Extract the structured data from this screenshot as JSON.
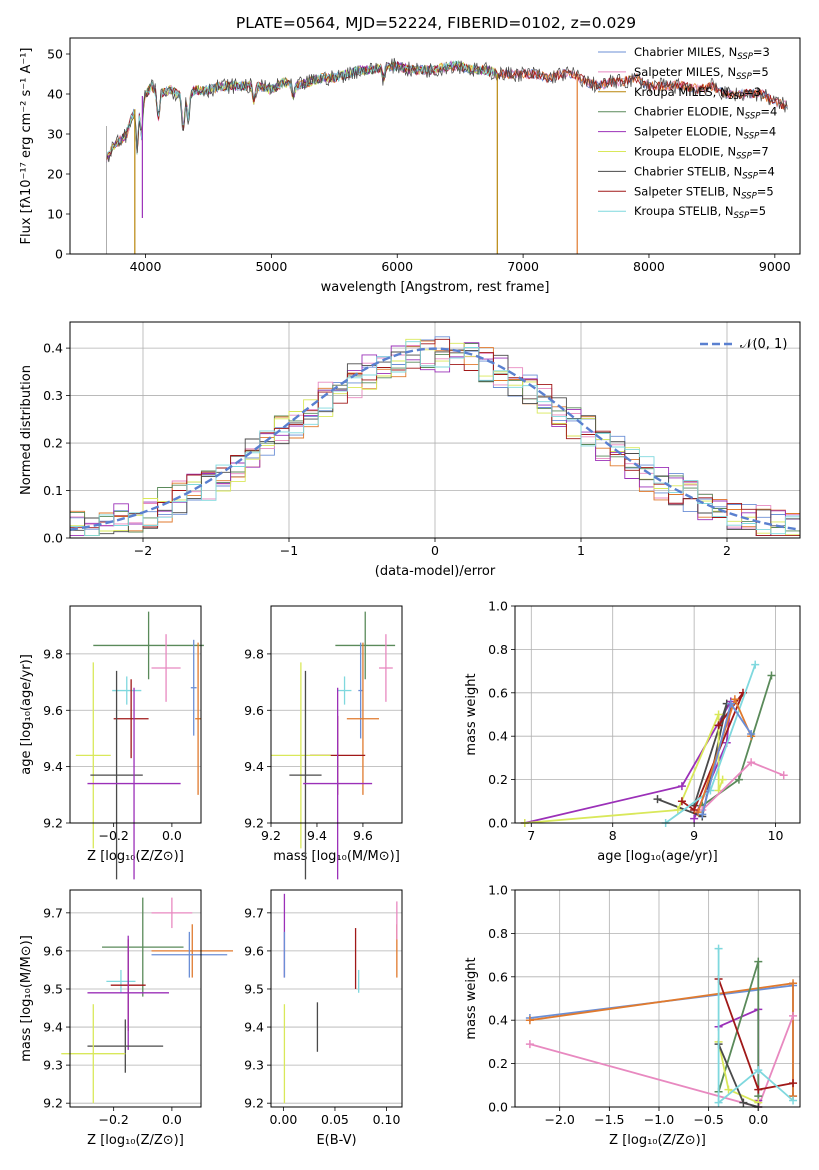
{
  "title": "PLATE=0564, MJD=52224, FIBERID=0102, z=0.029",
  "colors": {
    "Chabrier MILES": "#6b8fd6",
    "Salpeter MILES": "#e889c0",
    "Kroupa MILES": "#b8860b",
    "Chabrier ELODIE": "#5a8a5a",
    "Salpeter ELODIE": "#9b30b8",
    "Kroupa ELODIE": "#d9e85a",
    "Chabrier STELIB": "#4a4a4a",
    "Salpeter STELIB": "#a01818",
    "Kroupa STELIB": "#7fd8de",
    "orange": "#e07a2e",
    "normal": "#5a80d0"
  },
  "legend": [
    {
      "name": "Chabrier MILES",
      "pre": "Chabrier MILES, N",
      "n": "3"
    },
    {
      "name": "Salpeter MILES",
      "pre": "Salpeter MILES, N",
      "n": "5"
    },
    {
      "name": "Kroupa MILES",
      "pre": "Kroupa MILES, N",
      "n": "3"
    },
    {
      "name": "Chabrier ELODIE",
      "pre": "Chabrier ELODIE, N",
      "n": "4"
    },
    {
      "name": "Salpeter ELODIE",
      "pre": "Salpeter ELODIE, N",
      "n": "4"
    },
    {
      "name": "Kroupa ELODIE",
      "pre": "Kroupa ELODIE, N",
      "n": "7"
    },
    {
      "name": "Chabrier STELIB",
      "pre": "Chabrier STELIB, N",
      "n": "4"
    },
    {
      "name": "Salpeter STELIB",
      "pre": "Salpeter STELIB, N",
      "n": "5"
    },
    {
      "name": "Kroupa STELIB",
      "pre": "Kroupa STELIB, N",
      "n": "5"
    }
  ],
  "legend_sub": "SSP",
  "normal_label": "𝒩(0, 1)",
  "chart_data": [
    {
      "id": "spectrum",
      "type": "line",
      "xlabel": "wavelength [Angstrom, rest frame]",
      "ylabel": "Flux [fλ10⁻¹⁷ erg cm⁻² s⁻¹ A⁻¹]",
      "xlim": [
        3400,
        9200
      ],
      "ylim": [
        0,
        54
      ],
      "xticks": [
        4000,
        5000,
        6000,
        7000,
        8000,
        9000
      ],
      "yticks": [
        0,
        10,
        20,
        30,
        40,
        50
      ],
      "continuum": [
        [
          3690,
          24
        ],
        [
          3750,
          27
        ],
        [
          3850,
          30
        ],
        [
          3900,
          35
        ],
        [
          3950,
          39
        ],
        [
          4000,
          40
        ],
        [
          4050,
          42
        ],
        [
          4100,
          40
        ],
        [
          4200,
          41
        ],
        [
          4300,
          39
        ],
        [
          4400,
          41
        ],
        [
          4500,
          41
        ],
        [
          4600,
          42
        ],
        [
          4700,
          42
        ],
        [
          4800,
          42
        ],
        [
          4900,
          42
        ],
        [
          5000,
          41
        ],
        [
          5100,
          43
        ],
        [
          5200,
          42
        ],
        [
          5300,
          43
        ],
        [
          5400,
          44
        ],
        [
          5500,
          44
        ],
        [
          5600,
          45
        ],
        [
          5700,
          46
        ],
        [
          5800,
          46
        ],
        [
          5900,
          47
        ],
        [
          6000,
          47
        ],
        [
          6100,
          46
        ],
        [
          6200,
          46
        ],
        [
          6300,
          46
        ],
        [
          6400,
          47
        ],
        [
          6500,
          47
        ],
        [
          6600,
          46
        ],
        [
          6700,
          46
        ],
        [
          6800,
          45
        ],
        [
          6900,
          45
        ],
        [
          7000,
          45
        ],
        [
          7100,
          45
        ],
        [
          7200,
          44
        ],
        [
          7300,
          45
        ],
        [
          7400,
          45
        ],
        [
          7500,
          43
        ],
        [
          7600,
          42
        ],
        [
          7700,
          43
        ],
        [
          7800,
          43
        ],
        [
          7900,
          44
        ],
        [
          8000,
          42
        ],
        [
          8100,
          42
        ],
        [
          8200,
          42
        ],
        [
          8300,
          42
        ],
        [
          8400,
          41
        ],
        [
          8500,
          42
        ],
        [
          8600,
          40
        ],
        [
          8700,
          40
        ],
        [
          8800,
          40
        ],
        [
          8900,
          40
        ],
        [
          9000,
          38
        ],
        [
          9100,
          37
        ]
      ],
      "drops": [
        {
          "series": "Kroupa MILES",
          "x": 3915,
          "to": 0
        },
        {
          "series": "Kroupa MILES",
          "x": 6795,
          "to": 0
        },
        {
          "series": "orange",
          "x": 7430,
          "to": 0
        },
        {
          "series": "Salpeter ELODIE",
          "x": 3975,
          "to": 9
        }
      ]
    },
    {
      "id": "residuals",
      "type": "area",
      "xlabel": "(data-model)/error",
      "ylabel": "Normed distribution",
      "xlim": [
        -2.5,
        2.5
      ],
      "ylim": [
        0,
        0.455
      ],
      "xticks": [
        -2,
        -1,
        0,
        1,
        2
      ],
      "xticklabels": [
        "−2",
        "−1",
        "0",
        "1",
        "2"
      ],
      "yticks": [
        0.0,
        0.1,
        0.2,
        0.3,
        0.4
      ],
      "yticklabels": [
        "0.0",
        "0.1",
        "0.2",
        "0.3",
        "0.4"
      ],
      "bin_width": 0.1,
      "normal": {
        "mu": 0,
        "sigma": 1
      }
    },
    {
      "id": "age_vs_Z",
      "type": "scatter",
      "xlabel": "Z [log₁₀(Z/Z⊙)]",
      "ylabel": "age  [log₁₀(age/yr)]",
      "xlim": [
        -0.35,
        0.1
      ],
      "ylim": [
        9.2,
        9.97
      ],
      "xticks": [
        -0.2,
        0.0
      ],
      "xticklabels": [
        "−0.2",
        "0.0"
      ],
      "yticks": [
        9.2,
        9.4,
        9.6,
        9.8
      ],
      "yticklabels": [
        "9.2",
        "9.4",
        "9.6",
        "9.8"
      ],
      "points": [
        {
          "s": "Chabrier ELODIE",
          "x": -0.08,
          "xe": 0.19,
          "y": 9.83,
          "ye": 0.12
        },
        {
          "s": "Salpeter MILES",
          "x": -0.02,
          "xe": 0.05,
          "y": 9.75,
          "ye": 0.12
        },
        {
          "s": "Chabrier MILES",
          "x": 0.075,
          "xe": 0.01,
          "y": 9.68,
          "ye": 0.17
        },
        {
          "s": "Kroupa STELIB",
          "x": -0.155,
          "xe": 0.05,
          "y": 9.67,
          "ye": 0.05
        },
        {
          "s": "orange",
          "x": 0.09,
          "xe": 0.01,
          "y": 9.57,
          "ye": 0.27
        },
        {
          "s": "Salpeter STELIB",
          "x": -0.14,
          "xe": 0.06,
          "y": 9.57,
          "ye": 0.14
        },
        {
          "s": "Kroupa ELODIE",
          "x": -0.27,
          "xe": 0.06,
          "y": 9.44,
          "ye": 0.33
        },
        {
          "s": "Chabrier STELIB",
          "x": -0.19,
          "xe": 0.09,
          "y": 9.37,
          "ye": 0.37
        },
        {
          "s": "Salpeter ELODIE",
          "x": -0.13,
          "xe": 0.16,
          "y": 9.34,
          "ye": 0.34
        }
      ]
    },
    {
      "id": "age_vs_mass",
      "type": "scatter",
      "xlabel": "mass [log₁₀(M/M⊙)]",
      "ylabel": "",
      "xlim": [
        9.2,
        9.77
      ],
      "ylim": [
        9.2,
        9.97
      ],
      "xticks": [
        9.2,
        9.4,
        9.6
      ],
      "xticklabels": [
        "9.2",
        "9.4",
        "9.6"
      ],
      "yticks": [
        9.2,
        9.4,
        9.6,
        9.8
      ],
      "yticklabels": [
        "9.2",
        "9.4",
        "9.6",
        "9.8"
      ],
      "points": [
        {
          "s": "Chabrier ELODIE",
          "x": 9.61,
          "xe": 0.13,
          "y": 9.83,
          "ye": 0.12
        },
        {
          "s": "Salpeter MILES",
          "x": 9.7,
          "xe": 0.03,
          "y": 9.75,
          "ye": 0.12
        },
        {
          "s": "Chabrier MILES",
          "x": 9.59,
          "xe": 0.01,
          "y": 9.67,
          "ye": 0.17
        },
        {
          "s": "Kroupa STELIB",
          "x": 9.52,
          "xe": 0.03,
          "y": 9.67,
          "ye": 0.05
        },
        {
          "s": "orange",
          "x": 9.6,
          "xe": 0.07,
          "y": 9.57,
          "ye": 0.27
        },
        {
          "s": "Salpeter STELIB",
          "x": 9.49,
          "xe": 0.12,
          "y": 9.44,
          "ye": 0.14
        },
        {
          "s": "Kroupa ELODIE",
          "x": 9.33,
          "xe": 0.13,
          "y": 9.44,
          "ye": 0.33
        },
        {
          "s": "Chabrier STELIB",
          "x": 9.35,
          "xe": 0.07,
          "y": 9.37,
          "ye": 0.37
        },
        {
          "s": "Salpeter ELODIE",
          "x": 9.49,
          "xe": 0.15,
          "y": 9.34,
          "ye": 0.34
        }
      ]
    },
    {
      "id": "mass_weight_vs_age",
      "type": "line",
      "xlabel": "age  [log₁₀(age/yr)]",
      "ylabel": "mass weight",
      "xlim": [
        6.8,
        10.3
      ],
      "ylim": [
        0,
        1
      ],
      "xticks": [
        7,
        8,
        9,
        10
      ],
      "xticklabels": [
        "7",
        "8",
        "9",
        "10"
      ],
      "yticks": [
        0,
        0.2,
        0.4,
        0.6,
        0.8,
        1.0
      ],
      "yticklabels": [
        "0.0",
        "0.2",
        "0.4",
        "0.6",
        "0.8",
        "1.0"
      ],
      "lines": [
        {
          "s": "Salpeter ELODIE",
          "pts": [
            [
              6.92,
              0.0
            ],
            [
              8.85,
              0.17
            ],
            [
              9.45,
              0.56
            ],
            [
              9.4,
              0.37
            ],
            [
              9.0,
              0.02
            ]
          ]
        },
        {
          "s": "Chabrier STELIB",
          "pts": [
            [
              8.55,
              0.11
            ],
            [
              9.1,
              0.03
            ],
            [
              9.4,
              0.55
            ],
            [
              9.0,
              0.08
            ]
          ]
        },
        {
          "s": "Kroupa ELODIE",
          "pts": [
            [
              6.92,
              0.0
            ],
            [
              8.8,
              0.06
            ],
            [
              9.3,
              0.5
            ],
            [
              9.3,
              0.15
            ],
            [
              9.35,
              0.2
            ]
          ]
        },
        {
          "s": "Salpeter STELIB",
          "pts": [
            [
              8.85,
              0.1
            ],
            [
              9.0,
              0.06
            ],
            [
              9.6,
              0.6
            ],
            [
              9.3,
              0.45
            ]
          ]
        },
        {
          "s": "Chabrier ELODIE",
          "pts": [
            [
              9.1,
              0.08
            ],
            [
              9.55,
              0.2
            ],
            [
              9.95,
              0.68
            ]
          ]
        },
        {
          "s": "Kroupa STELIB",
          "pts": [
            [
              8.65,
              0.0
            ],
            [
              9.2,
              0.15
            ],
            [
              9.75,
              0.73
            ]
          ]
        },
        {
          "s": "Salpeter MILES",
          "pts": [
            [
              9.1,
              0.06
            ],
            [
              9.7,
              0.28
            ],
            [
              10.1,
              0.22
            ]
          ]
        },
        {
          "s": "orange",
          "pts": [
            [
              9.05,
              0.05
            ],
            [
              9.5,
              0.57
            ],
            [
              9.7,
              0.4
            ]
          ]
        },
        {
          "s": "Chabrier MILES",
          "pts": [
            [
              9.1,
              0.04
            ],
            [
              9.45,
              0.55
            ],
            [
              9.7,
              0.41
            ]
          ]
        }
      ]
    },
    {
      "id": "mass_vs_Z",
      "type": "scatter",
      "xlabel": "Z [log₁₀(Z/Z⊙)]",
      "ylabel": "mass [log₁₀(M/M⊙)]",
      "xlim": [
        -0.35,
        0.1
      ],
      "ylim": [
        9.19,
        9.76
      ],
      "xticks": [
        -0.2,
        0.0
      ],
      "xticklabels": [
        "−0.2",
        "0.0"
      ],
      "yticks": [
        9.2,
        9.3,
        9.4,
        9.5,
        9.6,
        9.7
      ],
      "yticklabels": [
        "9.2",
        "9.3",
        "9.4",
        "9.5",
        "9.6",
        "9.7"
      ],
      "points": [
        {
          "s": "Salpeter MILES",
          "x": 0.0,
          "xe": 0.07,
          "y": 9.7,
          "ye": 0.04
        },
        {
          "s": "Chabrier ELODIE",
          "x": -0.1,
          "xe": 0.14,
          "y": 9.61,
          "ye": 0.13
        },
        {
          "s": "orange",
          "x": 0.07,
          "xe": 0.14,
          "y": 9.6,
          "ye": 0.07
        },
        {
          "s": "Chabrier MILES",
          "x": 0.06,
          "xe": 0.13,
          "y": 9.59,
          "ye": 0.06
        },
        {
          "s": "Kroupa STELIB",
          "x": -0.175,
          "xe": 0.05,
          "y": 9.52,
          "ye": 0.03
        },
        {
          "s": "Salpeter STELIB",
          "x": -0.15,
          "xe": 0.06,
          "y": 9.51,
          "ye": 0.12
        },
        {
          "s": "Salpeter ELODIE",
          "x": -0.15,
          "xe": 0.14,
          "y": 9.49,
          "ye": 0.15
        },
        {
          "s": "Chabrier STELIB",
          "x": -0.16,
          "xe": 0.13,
          "y": 9.35,
          "ye": 0.07
        },
        {
          "s": "Kroupa ELODIE",
          "x": -0.27,
          "xe": 0.11,
          "y": 9.33,
          "ye": 0.13
        }
      ]
    },
    {
      "id": "mass_vs_ebv",
      "type": "scatter",
      "xlabel": "E(B-V)",
      "ylabel": "",
      "xlim": [
        -0.012,
        0.115
      ],
      "ylim": [
        9.19,
        9.76
      ],
      "xticks": [
        0.0,
        0.05,
        0.1
      ],
      "xticklabels": [
        "0.00",
        "0.05",
        "0.10"
      ],
      "yticks": [
        9.2,
        9.3,
        9.4,
        9.5,
        9.6,
        9.7
      ],
      "yticklabels": [
        "9.2",
        "9.3",
        "9.4",
        "9.5",
        "9.6",
        "9.7"
      ],
      "points": [
        {
          "s": "Salpeter ELODIE",
          "x": 0.001,
          "xe": 0,
          "y": 9.64,
          "ye": 0.11
        },
        {
          "s": "Chabrier MILES",
          "x": 0.001,
          "xe": 0,
          "y": 9.59,
          "ye": 0.06
        },
        {
          "s": "Kroupa ELODIE",
          "x": 0.001,
          "xe": 0,
          "y": 9.33,
          "ye": 0.13
        },
        {
          "s": "Chabrier STELIB",
          "x": 0.033,
          "xe": 0,
          "y": 9.4,
          "ye": 0.065
        },
        {
          "s": "Salpeter STELIB",
          "x": 0.07,
          "xe": 0,
          "y": 9.58,
          "ye": 0.08
        },
        {
          "s": "Kroupa STELIB",
          "x": 0.073,
          "xe": 0,
          "y": 9.52,
          "ye": 0.03
        },
        {
          "s": "orange",
          "x": 0.11,
          "xe": 0,
          "y": 9.6,
          "ye": 0.07
        },
        {
          "s": "Salpeter MILES",
          "x": 0.11,
          "xe": 0,
          "y": 9.68,
          "ye": 0.05
        }
      ]
    },
    {
      "id": "mass_weight_vs_Z",
      "type": "line",
      "xlabel": "Z [log₁₀(Z/Z⊙)]",
      "ylabel": "mass weight",
      "xlim": [
        -2.45,
        0.42
      ],
      "ylim": [
        0,
        1
      ],
      "xticks": [
        -2.0,
        -1.5,
        -1.0,
        -0.5,
        0.0
      ],
      "xticklabels": [
        "−2.0",
        "−1.5",
        "−1.0",
        "−0.5",
        "0.0"
      ],
      "yticks": [
        0,
        0.2,
        0.4,
        0.6,
        0.8,
        1.0
      ],
      "yticklabels": [
        "0.0",
        "0.2",
        "0.4",
        "0.6",
        "0.8",
        "1.0"
      ],
      "lines": [
        {
          "s": "Chabrier MILES",
          "pts": [
            [
              -2.3,
              0.41
            ],
            [
              0.35,
              0.56
            ],
            [
              0.35,
              0.05
            ]
          ]
        },
        {
          "s": "orange",
          "pts": [
            [
              -2.3,
              0.4
            ],
            [
              0.35,
              0.57
            ],
            [
              0.35,
              0.05
            ]
          ]
        },
        {
          "s": "Salpeter MILES",
          "pts": [
            [
              -2.3,
              0.29
            ],
            [
              0.0,
              0.0
            ],
            [
              0.35,
              0.42
            ]
          ]
        },
        {
          "s": "Salpeter ELODIE",
          "pts": [
            [
              -0.4,
              0.37
            ],
            [
              0.0,
              0.45
            ],
            [
              0.0,
              0.03
            ]
          ]
        },
        {
          "s": "Chabrier ELODIE",
          "pts": [
            [
              -0.4,
              0.07
            ],
            [
              0.0,
              0.67
            ],
            [
              0.0,
              0.05
            ]
          ]
        },
        {
          "s": "Kroupa ELODIE",
          "pts": [
            [
              -0.4,
              0.3
            ],
            [
              -0.3,
              0.08
            ],
            [
              0.0,
              0.02
            ]
          ]
        },
        {
          "s": "Chabrier STELIB",
          "pts": [
            [
              -0.4,
              0.29
            ],
            [
              -0.15,
              0.02
            ],
            [
              0.0,
              0.0
            ]
          ]
        },
        {
          "s": "Salpeter STELIB",
          "pts": [
            [
              -0.4,
              0.59
            ],
            [
              0.0,
              0.08
            ],
            [
              0.35,
              0.11
            ]
          ]
        },
        {
          "s": "Kroupa STELIB",
          "pts": [
            [
              -0.4,
              0.73
            ],
            [
              -0.4,
              0.02
            ],
            [
              0.0,
              0.17
            ],
            [
              0.35,
              0.03
            ]
          ]
        }
      ]
    }
  ]
}
